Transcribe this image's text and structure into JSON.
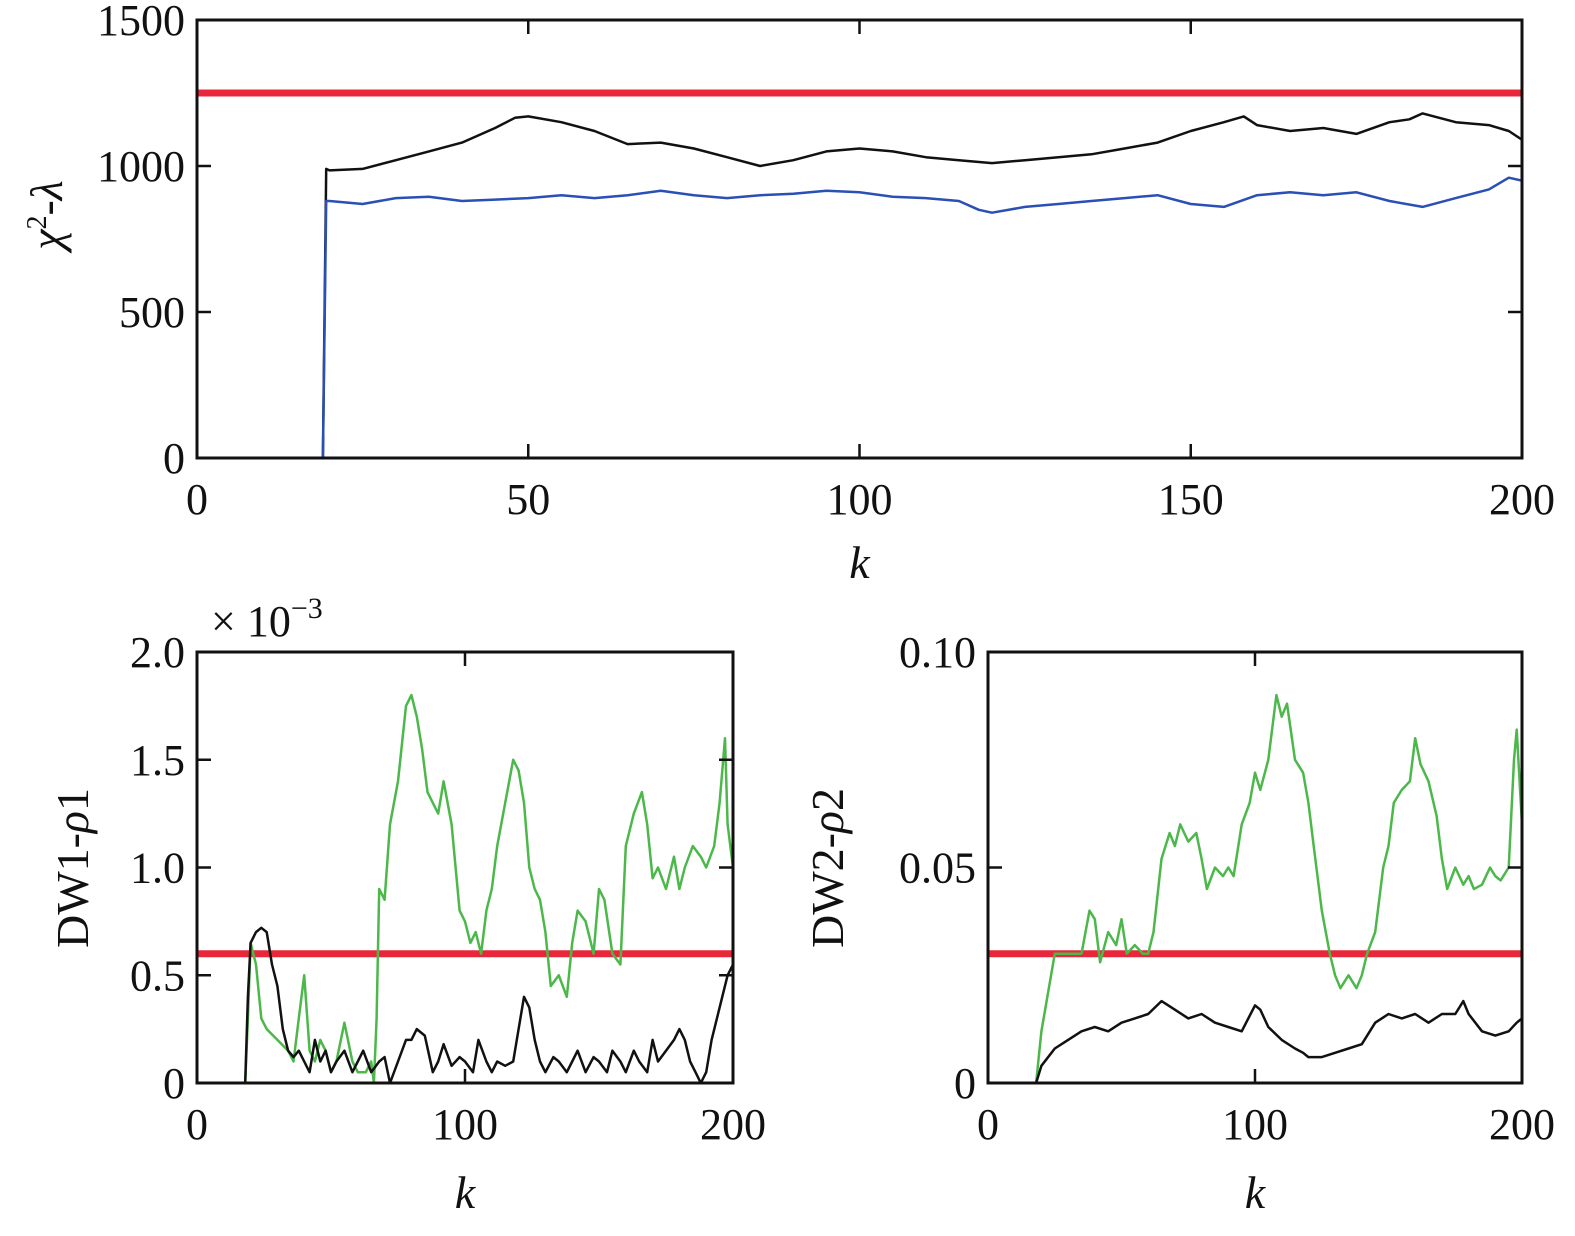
{
  "chart_data": [
    {
      "type": "line",
      "xlabel": "k",
      "ylabel": "χ2-λ",
      "ylabel_parts": {
        "base": "χ",
        "sup": "2",
        "tail": "-λ"
      },
      "xlim": [
        0,
        200
      ],
      "ylim": [
        0,
        1500
      ],
      "xticks": [
        0,
        50,
        100,
        150,
        200
      ],
      "yticks": [
        0,
        500,
        1000,
        1500
      ],
      "xtick_labels": [
        "0",
        "50",
        "100",
        "150",
        "200"
      ],
      "ytick_labels": [
        "0",
        "500",
        "1000",
        "1500"
      ],
      "grid": false,
      "legend": "none",
      "series": [
        {
          "color": "#e8283a",
          "width": 7,
          "x": [
            0,
            200
          ],
          "y": [
            1250,
            1250
          ]
        },
        {
          "color": "#111111",
          "width": 2.5,
          "x": [
            1,
            19,
            19.5,
            20,
            25,
            30,
            35,
            40,
            45,
            48,
            50,
            55,
            60,
            65,
            70,
            75,
            80,
            85,
            90,
            95,
            100,
            105,
            110,
            115,
            120,
            125,
            130,
            135,
            140,
            145,
            150,
            155,
            158,
            160,
            165,
            170,
            175,
            180,
            183,
            185,
            190,
            195,
            198,
            200
          ],
          "y": [
            0,
            0,
            990,
            985,
            990,
            1020,
            1050,
            1080,
            1130,
            1165,
            1170,
            1150,
            1120,
            1075,
            1080,
            1060,
            1030,
            1000,
            1020,
            1050,
            1060,
            1050,
            1030,
            1020,
            1010,
            1020,
            1030,
            1040,
            1060,
            1080,
            1120,
            1150,
            1170,
            1140,
            1120,
            1130,
            1110,
            1150,
            1160,
            1180,
            1150,
            1140,
            1120,
            1090
          ]
        },
        {
          "color": "#2a4fb5",
          "width": 2.5,
          "x": [
            1,
            19,
            19.5,
            20,
            25,
            30,
            35,
            40,
            45,
            50,
            55,
            60,
            65,
            70,
            75,
            80,
            85,
            90,
            95,
            100,
            105,
            110,
            115,
            118,
            120,
            125,
            130,
            135,
            140,
            145,
            150,
            155,
            160,
            165,
            170,
            175,
            180,
            185,
            190,
            195,
            198,
            200
          ],
          "y": [
            0,
            0,
            880,
            880,
            870,
            890,
            895,
            880,
            885,
            890,
            900,
            890,
            900,
            915,
            900,
            890,
            900,
            905,
            915,
            910,
            895,
            890,
            880,
            850,
            840,
            860,
            870,
            880,
            890,
            900,
            870,
            860,
            900,
            910,
            900,
            910,
            880,
            860,
            890,
            920,
            960,
            950
          ]
        }
      ]
    },
    {
      "type": "line",
      "xlabel": "k",
      "ylabel": "DW1-ρ1",
      "ylabel_parts": {
        "main": "DW1-",
        "ital": "ρ",
        "tail": "1"
      },
      "multiplier": "× 10",
      "multiplier_exp": "−3",
      "xlim": [
        0,
        200
      ],
      "ylim": [
        0,
        2.0
      ],
      "xticks": [
        0,
        100,
        200
      ],
      "yticks": [
        0,
        0.5,
        1.0,
        1.5,
        2.0
      ],
      "xtick_labels": [
        "0",
        "100",
        "200"
      ],
      "ytick_labels": [
        "0",
        "0.5",
        "1.0",
        "1.5",
        "2.0"
      ],
      "grid": false,
      "legend": "none",
      "series": [
        {
          "color": "#e8283a",
          "width": 7,
          "x": [
            0,
            200
          ],
          "y": [
            0.6,
            0.6
          ]
        },
        {
          "color": "#4cb84a",
          "width": 2.5,
          "x": [
            1,
            18,
            19,
            20,
            22,
            24,
            26,
            30,
            34,
            36,
            38,
            40,
            42,
            44,
            46,
            48,
            50,
            52,
            55,
            58,
            60,
            63,
            65,
            66,
            67,
            68,
            70,
            72,
            75,
            78,
            80,
            82,
            84,
            86,
            88,
            90,
            92,
            95,
            98,
            100,
            102,
            104,
            106,
            108,
            110,
            112,
            115,
            118,
            120,
            122,
            124,
            126,
            128,
            130,
            132,
            135,
            138,
            140,
            142,
            145,
            148,
            150,
            152,
            155,
            158,
            160,
            163,
            166,
            168,
            170,
            172,
            175,
            178,
            180,
            182,
            185,
            188,
            190,
            193,
            195,
            197,
            198,
            200
          ],
          "y": [
            0,
            0,
            0.3,
            0.65,
            0.55,
            0.3,
            0.25,
            0.2,
            0.15,
            0.1,
            0.3,
            0.5,
            0.15,
            0.1,
            0.2,
            0.15,
            0.05,
            0.1,
            0.28,
            0.1,
            0.05,
            0.05,
            0.1,
            0.0,
            0.3,
            0.9,
            0.85,
            1.2,
            1.4,
            1.75,
            1.8,
            1.7,
            1.55,
            1.35,
            1.3,
            1.25,
            1.4,
            1.2,
            0.8,
            0.75,
            0.65,
            0.7,
            0.6,
            0.8,
            0.9,
            1.1,
            1.3,
            1.5,
            1.45,
            1.3,
            1.0,
            0.9,
            0.85,
            0.7,
            0.45,
            0.5,
            0.4,
            0.65,
            0.8,
            0.75,
            0.6,
            0.9,
            0.85,
            0.6,
            0.55,
            1.1,
            1.25,
            1.35,
            1.2,
            0.95,
            1.0,
            0.9,
            1.05,
            0.9,
            1.0,
            1.1,
            1.05,
            1.0,
            1.1,
            1.3,
            1.6,
            1.2,
            1.0
          ]
        },
        {
          "color": "#111111",
          "width": 2.5,
          "x": [
            1,
            18,
            19,
            20,
            22,
            24,
            26,
            28,
            30,
            32,
            34,
            36,
            38,
            40,
            42,
            44,
            46,
            48,
            50,
            52,
            55,
            58,
            60,
            62,
            65,
            68,
            70,
            72,
            75,
            78,
            80,
            82,
            85,
            88,
            90,
            92,
            95,
            98,
            100,
            103,
            105,
            108,
            110,
            112,
            115,
            118,
            120,
            122,
            124,
            126,
            128,
            130,
            133,
            135,
            138,
            140,
            142,
            145,
            148,
            150,
            153,
            155,
            158,
            160,
            163,
            165,
            168,
            170,
            172,
            175,
            178,
            180,
            182,
            184,
            186,
            188,
            190,
            192,
            195,
            198,
            200
          ],
          "y": [
            0,
            0,
            0.4,
            0.65,
            0.7,
            0.72,
            0.7,
            0.55,
            0.45,
            0.25,
            0.15,
            0.12,
            0.15,
            0.1,
            0.05,
            0.2,
            0.1,
            0.15,
            0.05,
            0.1,
            0.15,
            0.05,
            0.1,
            0.15,
            0.05,
            0.1,
            0.12,
            0.0,
            0.1,
            0.2,
            0.2,
            0.25,
            0.22,
            0.05,
            0.1,
            0.18,
            0.08,
            0.12,
            0.1,
            0.05,
            0.2,
            0.1,
            0.05,
            0.1,
            0.08,
            0.1,
            0.25,
            0.4,
            0.35,
            0.2,
            0.1,
            0.05,
            0.12,
            0.1,
            0.05,
            0.1,
            0.15,
            0.05,
            0.12,
            0.1,
            0.05,
            0.15,
            0.1,
            0.05,
            0.15,
            0.1,
            0.05,
            0.2,
            0.1,
            0.15,
            0.2,
            0.25,
            0.2,
            0.1,
            0.05,
            0.0,
            0.05,
            0.2,
            0.35,
            0.5,
            0.55
          ]
        }
      ]
    },
    {
      "type": "line",
      "xlabel": "k",
      "ylabel": "DW2-ρ2",
      "ylabel_parts": {
        "main": "DW2-",
        "ital": "ρ",
        "tail": "2"
      },
      "xlim": [
        0,
        200
      ],
      "ylim": [
        0,
        0.1
      ],
      "xticks": [
        0,
        100,
        200
      ],
      "yticks": [
        0,
        0.05,
        0.1
      ],
      "xtick_labels": [
        "0",
        "100",
        "200"
      ],
      "ytick_labels": [
        "0",
        "0.05",
        "0.10"
      ],
      "grid": false,
      "legend": "none",
      "series": [
        {
          "color": "#e8283a",
          "width": 7,
          "x": [
            0,
            200
          ],
          "y": [
            0.03,
            0.03
          ]
        },
        {
          "color": "#4cb84a",
          "width": 2.5,
          "x": [
            1,
            18,
            20,
            25,
            30,
            35,
            38,
            40,
            42,
            45,
            48,
            50,
            52,
            55,
            58,
            60,
            62,
            65,
            68,
            70,
            72,
            75,
            78,
            80,
            82,
            85,
            88,
            90,
            92,
            95,
            98,
            100,
            102,
            105,
            108,
            110,
            112,
            115,
            118,
            120,
            122,
            125,
            128,
            130,
            132,
            135,
            138,
            140,
            142,
            145,
            148,
            150,
            152,
            155,
            158,
            160,
            162,
            165,
            168,
            170,
            172,
            175,
            178,
            180,
            182,
            185,
            188,
            190,
            192,
            195,
            197,
            198,
            200
          ],
          "y": [
            0,
            0,
            0.012,
            0.03,
            0.03,
            0.03,
            0.04,
            0.038,
            0.028,
            0.035,
            0.032,
            0.038,
            0.03,
            0.032,
            0.03,
            0.03,
            0.035,
            0.052,
            0.058,
            0.055,
            0.06,
            0.056,
            0.058,
            0.052,
            0.045,
            0.05,
            0.048,
            0.05,
            0.048,
            0.06,
            0.065,
            0.072,
            0.068,
            0.075,
            0.09,
            0.085,
            0.088,
            0.075,
            0.072,
            0.065,
            0.055,
            0.04,
            0.03,
            0.025,
            0.022,
            0.025,
            0.022,
            0.025,
            0.03,
            0.035,
            0.05,
            0.055,
            0.065,
            0.068,
            0.07,
            0.08,
            0.074,
            0.07,
            0.062,
            0.052,
            0.045,
            0.05,
            0.046,
            0.048,
            0.045,
            0.046,
            0.05,
            0.048,
            0.047,
            0.05,
            0.075,
            0.082,
            0.06
          ]
        },
        {
          "color": "#111111",
          "width": 2.5,
          "x": [
            1,
            18,
            20,
            25,
            30,
            35,
            40,
            45,
            50,
            55,
            60,
            65,
            70,
            75,
            80,
            85,
            90,
            95,
            100,
            102,
            105,
            110,
            115,
            118,
            120,
            125,
            130,
            135,
            140,
            145,
            150,
            155,
            160,
            165,
            170,
            175,
            178,
            180,
            185,
            190,
            195,
            198,
            200
          ],
          "y": [
            0,
            0,
            0.004,
            0.008,
            0.01,
            0.012,
            0.013,
            0.012,
            0.014,
            0.015,
            0.016,
            0.019,
            0.017,
            0.015,
            0.016,
            0.014,
            0.013,
            0.012,
            0.018,
            0.017,
            0.013,
            0.01,
            0.008,
            0.007,
            0.006,
            0.006,
            0.007,
            0.008,
            0.009,
            0.014,
            0.016,
            0.015,
            0.016,
            0.014,
            0.016,
            0.016,
            0.019,
            0.016,
            0.012,
            0.011,
            0.012,
            0.014,
            0.015
          ]
        }
      ]
    }
  ]
}
